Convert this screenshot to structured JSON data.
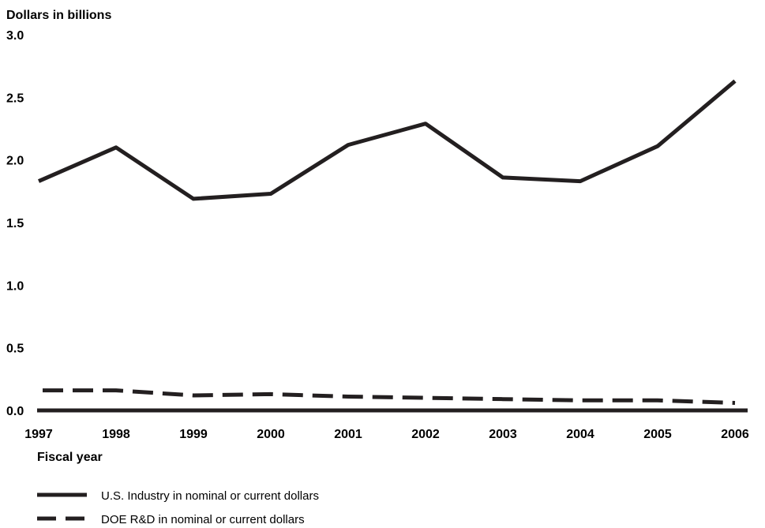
{
  "chart_data": {
    "type": "line",
    "ylabel": "Dollars in billions",
    "xlabel": "Fiscal year",
    "x": [
      "1997",
      "1998",
      "1999",
      "2000",
      "2001",
      "2002",
      "2003",
      "2004",
      "2005",
      "2006"
    ],
    "ylim": [
      0,
      3.0
    ],
    "yticks": [
      "0.0",
      "0.5",
      "1.0",
      "1.5",
      "2.0",
      "2.5",
      "3.0"
    ],
    "grid": false,
    "legend_position": "bottom-left",
    "series": [
      {
        "name": "U.S. Industry in nominal or current dollars",
        "style": "solid",
        "color": "#231f20",
        "values": [
          1.83,
          2.1,
          1.69,
          1.73,
          2.12,
          2.29,
          1.86,
          1.83,
          2.11,
          2.63
        ]
      },
      {
        "name": "DOE R&D in nominal or current dollars",
        "style": "dashed",
        "color": "#231f20",
        "values": [
          0.16,
          0.16,
          0.12,
          0.13,
          0.11,
          0.1,
          0.09,
          0.08,
          0.08,
          0.06
        ]
      }
    ]
  }
}
